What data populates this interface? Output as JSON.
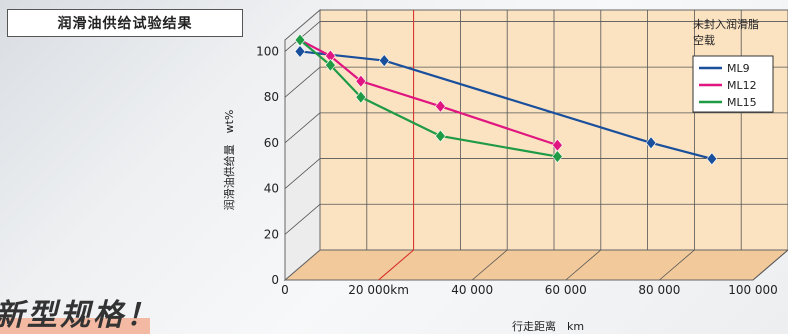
{
  "chart_data": {
    "type": "line",
    "title": "润滑油供给试验结果",
    "xlabel": "行走距离　km",
    "ylabel": "润滑油供给量　wt%",
    "xlim": [
      0,
      100000
    ],
    "ylim": [
      0,
      105
    ],
    "x_ticks": [
      "0",
      "20 000km",
      "40 000",
      "60 000",
      "80 000",
      "100 000"
    ],
    "y_ticks": [
      "0",
      "20",
      "40",
      "60",
      "80",
      "100"
    ],
    "reference_line_x": 20000,
    "legend_title": "未封入润滑脂\n空载",
    "series": [
      {
        "name": "ML9",
        "color": "#1a4f9c",
        "x": [
          0,
          18000,
          75000,
          88000
        ],
        "y": [
          100,
          96,
          60,
          53
        ]
      },
      {
        "name": "ML12",
        "color": "#e0157f",
        "x": [
          0,
          6500,
          13000,
          30000,
          55000
        ],
        "y": [
          105,
          98,
          87,
          76,
          59
        ]
      },
      {
        "name": "ML15",
        "color": "#1f9a45",
        "x": [
          0,
          6500,
          13000,
          30000,
          55000
        ],
        "y": [
          105,
          94,
          80,
          63,
          54
        ]
      }
    ]
  },
  "page": {
    "title_box": "润滑油供给试验结果",
    "slogan": "新型规格！"
  }
}
